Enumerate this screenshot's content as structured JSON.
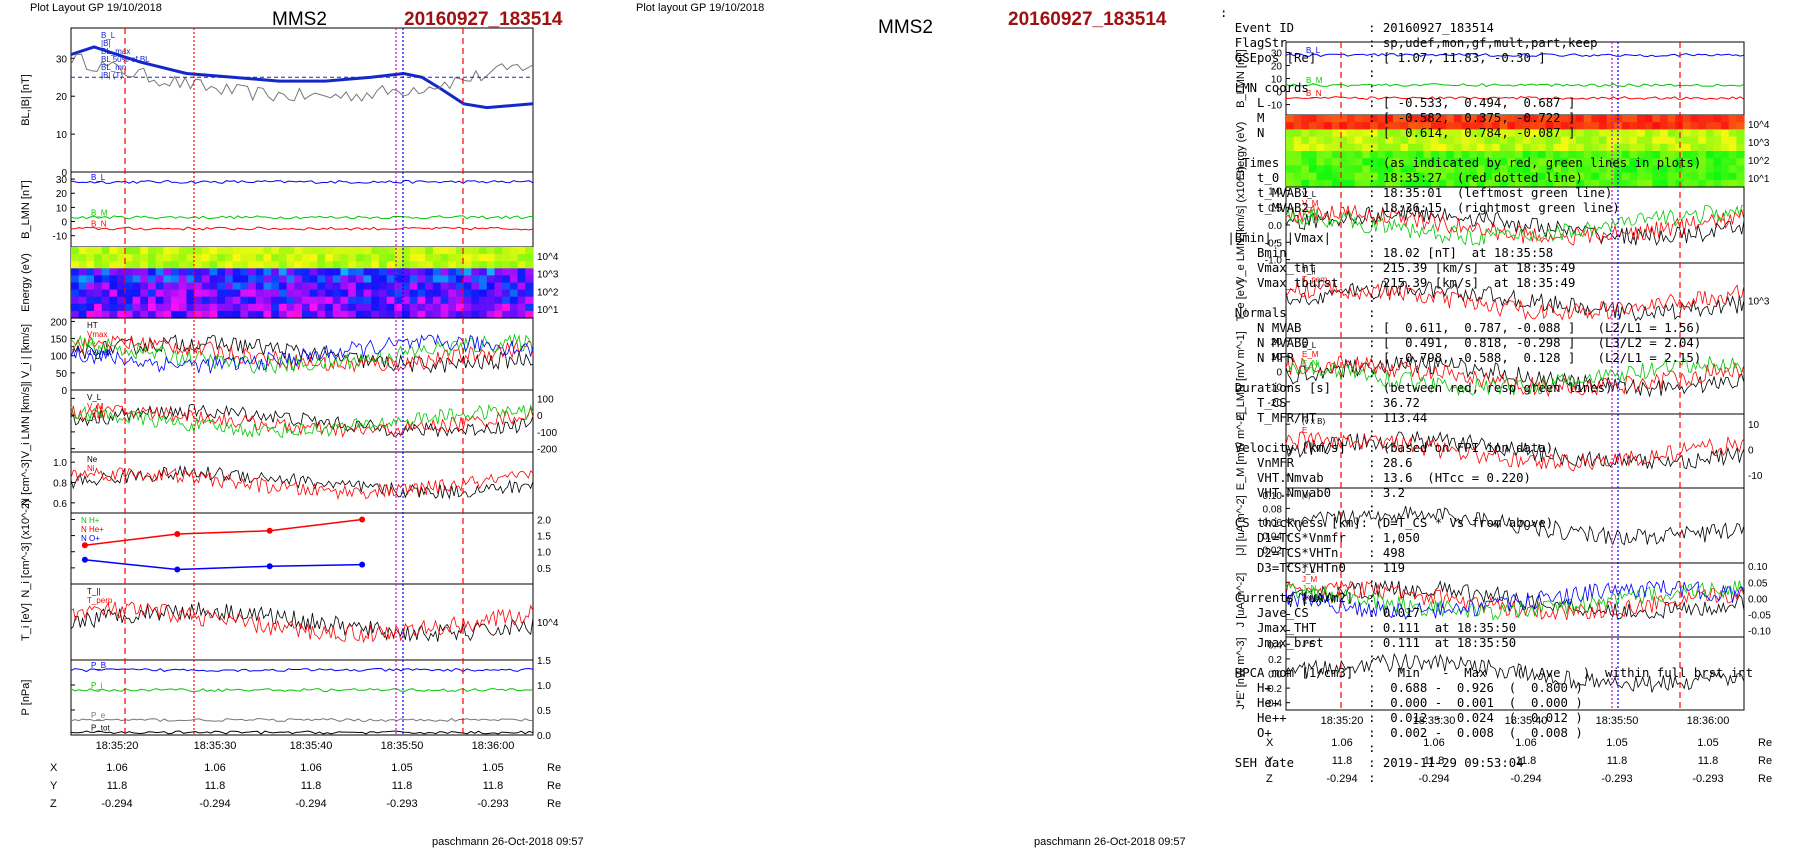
{
  "header": {
    "left_caption": "Plot Layout GP 19/10/2018",
    "right_caption": "Plot layout GP 19/10/2018",
    "spacecraft": "MMS2",
    "event": "20160927_183514"
  },
  "footer": {
    "left": "paschmann 26-Oct-2018 09:57",
    "right": "paschmann 26-Oct-2018 09:57"
  },
  "ephemeris": {
    "labels": [
      "X",
      "Y",
      "Z"
    ],
    "unit": "Re",
    "rows": [
      [
        "1.06",
        "1.06",
        "1.06",
        "1.05",
        "1.05"
      ],
      [
        "11.8",
        "11.8",
        "11.8",
        "11.8",
        "11.8"
      ],
      [
        "-0.294",
        "-0.294",
        "-0.294",
        "-0.293",
        "-0.293"
      ]
    ]
  },
  "summary_lines": [
    ":",
    "  Event ID          : 20160927_183514",
    "  FlagStr           : sp,udef,mon,gf,mult,part,keep",
    "  GSEpos [Re]       : [ 1.07, 11.83, -0.30 ]",
    "                    :",
    "  LMN coords        :",
    "     L              : [ -0.533,  0.494,  0.687 ]",
    "     M              : [ -0.582,  0.375, -0.722 ]",
    "     N              : [  0.614,  0.784, -0.087 ]",
    "                    :",
    "   Times            : (as indicated by red, green lines in plots)",
    "     t_0            : 18:35:27  (red dotted line)",
    "     t_MVAB1        : 18:35:01  (leftmost green line)",
    "     t_MVAB2        : 18:36:15  (rightmost green line)",
    "                    :",
    " |Bmin|, |Vmax|     :",
    "     Bmin           : 18.02 [nT]  at 18:35:58",
    "     Vmax_tht       : 215.39 [km/s]  at 18:35:49",
    "     Vmax_tburst    : 215.39 [km/s]  at 18:35:49",
    "                    :",
    "  Normals           :",
    "     N MVAB         : [  0.611,  0.787, -0.088 ]   (L2/L1 = 1.56)",
    "     N MVAB0        : [  0.491,  0.818, -0.298 ]   (L3/L2 = 2.04)",
    "     N MFR          : [ -0.798, -0.588,  0.128 ]   (L2/L1 = 2.15)",
    "                    :",
    "  Durations [s]     : (between red, resp green lines)",
    "     T_CS           : 36.72",
    "     T_MFR/HT       : 113.44",
    "                    :",
    "  Velocity [km/s]   : (based on FPI ion data)",
    "     VnMFR          : 28.6",
    "     VHT.Nmvab      : 13.6  (HTcc = 0.220)",
    "     VHT.Nmvab0     : 3.2",
    "                    :",
    "  CS thickness [km]: (D=T_CS * Vs from above)",
    "     D1=TCS*Vnmfr   : 1,050",
    "     D2=TCS*VHTn    : 498",
    "     D3=TCS*VHTn0   : 119",
    "                    :",
    "  Currents [uA/m2]  :",
    "     Jave_CS        : 0.017",
    "     Jmax_THT       : 0.111  at 18:35:50",
    "     Jmax_brst      : 0.111  at 18:35:50",
    "                    :",
    "  HPCA mom [1/cm3]  :   Min   -  Max    (  Ave   )  within full brst int",
    "     H+             :  0.688 -  0.926  (  0.800 )",
    "     He+            :  0.000 -  0.001  (  0.000 )",
    "     He++           :  0.012 -  0.024  (  0.012 )",
    "     O+             :  0.002 -  0.008  (  0.008 )",
    "                    :",
    "  SEH date          : 2019-11-29 09:53:04",
    "                    :"
  ],
  "colors": {
    "event_red": "#a01010",
    "bl_thick": "#1428c8",
    "series_blue": "#0000ff",
    "series_red": "#ff0000",
    "series_green": "#00c800",
    "marker_magenta": "#cc00cc"
  },
  "chart_data": [
    {
      "type": "line",
      "title": "MMS2 20160927_183514 (left)",
      "x_ticks": [
        "18:35:20",
        "18:35:30",
        "18:35:40",
        "18:35:50",
        "18:36:00"
      ],
      "panels": [
        {
          "id": "bl",
          "ylabel": "BL,|B| [nT]",
          "ylim": [
            0,
            38
          ],
          "ticks": [
            "0",
            "10",
            "20",
            "30"
          ],
          "legend": [
            "B_L",
            "|B|",
            "BL_max",
            "BL 50% of BL",
            "BL_mn",
            "|B| (T)"
          ],
          "thick_line": [
            [
              0,
              31
            ],
            [
              0.05,
              33
            ],
            [
              0.1,
              31
            ],
            [
              0.15,
              29
            ],
            [
              0.25,
              26
            ],
            [
              0.35,
              25
            ],
            [
              0.45,
              24
            ],
            [
              0.55,
              24
            ],
            [
              0.65,
              25
            ],
            [
              0.72,
              26
            ],
            [
              0.76,
              25
            ],
            [
              0.8,
              22
            ],
            [
              0.85,
              18
            ],
            [
              0.9,
              17
            ],
            [
              1,
              18
            ]
          ],
          "dashed_level": {
            "value": 25
          },
          "zero_level": {
            "value": 0
          }
        },
        {
          "id": "blmn",
          "ylabel": "B_LMN [nT]",
          "ylim": [
            -18,
            35
          ],
          "ticks": [
            "-10",
            "0",
            "10",
            "20",
            "30"
          ],
          "series": [
            {
              "name": "B_L",
              "color": "blue",
              "level": 28
            },
            {
              "name": "B_M",
              "color": "green",
              "level": 3
            },
            {
              "name": "B_N",
              "color": "red",
              "level": -5
            }
          ]
        },
        {
          "id": "ion_spec",
          "ylabel": "Energy (eV)",
          "ticks": [
            "10^1",
            "10^2",
            "10^3",
            "10^4"
          ],
          "kind": "spectrogram"
        },
        {
          "id": "vi_mag",
          "ylabel": "| V_i | [km/s]",
          "ylim": [
            0,
            210
          ],
          "ticks": [
            "0",
            "50",
            "100",
            "150",
            "200"
          ],
          "legend": [
            "HT",
            "Vmax",
            "ce",
            "dVmax"
          ]
        },
        {
          "id": "vi_lmn",
          "ylabel": "V_i LMN [km/s]",
          "ylim": [
            -220,
            150
          ],
          "ticks": [
            "100",
            "0",
            "-100",
            "-200"
          ],
          "legend": [
            "V_L",
            "V_M",
            "V_N"
          ]
        },
        {
          "id": "ni",
          "ylabel": "N [cm^-3]",
          "ylim": [
            0.5,
            1.1
          ],
          "ticks": [
            "0.6",
            "0.8",
            "1.0"
          ],
          "legend": [
            "Ne",
            "Ni"
          ]
        },
        {
          "id": "hpca",
          "ylabel": "N_i [cm^-3] (x10^-2)",
          "ylim": [
            0,
            2.2
          ],
          "ticks": [
            "0.5",
            "1.0",
            "1.5",
            "2.0"
          ],
          "series": [
            {
              "name": "N He+",
              "color": "red",
              "x": [
                0.03,
                0.23,
                0.43,
                0.63
              ],
              "y": [
                1.2,
                1.55,
                1.65,
                2.0
              ]
            },
            {
              "name": "N O+",
              "color": "blue",
              "x": [
                0.03,
                0.23,
                0.43,
                0.63
              ],
              "y": [
                0.75,
                0.45,
                0.55,
                0.6
              ]
            }
          ],
          "legend": [
            "N H+",
            "N He+",
            "N O+"
          ]
        },
        {
          "id": "ti",
          "ylabel": "T_i [eV]",
          "ticks": [
            "10^4"
          ],
          "legend": [
            "T_||",
            "T_perp"
          ]
        },
        {
          "id": "p",
          "ylabel": "P [nPa]",
          "ylim": [
            0,
            1.5
          ],
          "ticks": [
            "0.0",
            "0.5",
            "1.0",
            "1.5"
          ],
          "series": [
            {
              "name": "P_B",
              "color": "blue",
              "level": 1.3
            },
            {
              "name": "P_i",
              "color": "green",
              "level": 0.9
            },
            {
              "name": "P_e",
              "color": "gray",
              "level": 0.3
            },
            {
              "name": "P_tot",
              "color": "black",
              "level": 0.05
            }
          ]
        }
      ]
    },
    {
      "type": "line",
      "title": "MMS2 20160927_183514 (right)",
      "x_ticks": [
        "18:35:20",
        "18:35:30",
        "18:35:40",
        "18:35:50",
        "18:36:00"
      ],
      "panels": [
        {
          "id": "blmn2",
          "ylabel": "B_LMN [nT]",
          "ylim": [
            -18,
            38
          ],
          "ticks": [
            "-10",
            "0",
            "10",
            "20",
            "30"
          ],
          "series": [
            {
              "name": "B_L",
              "color": "blue",
              "level": 28
            },
            {
              "name": "B_M",
              "color": "green",
              "level": 5
            },
            {
              "name": "B_N",
              "color": "red",
              "level": -5
            }
          ]
        },
        {
          "id": "ele_spec",
          "ylabel": "Energy (eV)",
          "ticks": [
            "10^1",
            "10^2",
            "10^3",
            "10^4"
          ],
          "kind": "spectrogram"
        },
        {
          "id": "ve",
          "ylabel": "V_e LMN [km/s] (x10^3)",
          "ylim": [
            -1.1,
            1.1
          ],
          "ticks": [
            "1.0",
            "0.5",
            "0.0",
            "-0.5",
            "-1.0"
          ],
          "legend": [
            "V_L",
            "V_M",
            "V_N"
          ]
        },
        {
          "id": "te",
          "ylabel": "T_e [eV]",
          "ticks": [
            "10^3"
          ],
          "legend": [
            "T_||",
            "T_perp"
          ]
        },
        {
          "id": "e",
          "ylabel": "E_LMN [mV m^-1]",
          "ylim": [
            -28,
            22
          ],
          "ticks": [
            "20",
            "10",
            "0",
            "-10",
            "-20"
          ],
          "legend": [
            "E_L",
            "E_M",
            "E_N"
          ]
        },
        {
          "id": "em",
          "ylabel": "E_M [mW m^-2]",
          "ylim": [
            -15,
            14
          ],
          "ticks": [
            "10",
            "0",
            "-10"
          ],
          "legend": [
            "(v x B)",
            "E"
          ]
        },
        {
          "id": "jmag",
          "ylabel": "|J| [uA m^-2]",
          "ylim": [
            0,
            0.11
          ],
          "ticks": [
            "0.02",
            "0.04",
            "0.06",
            "0.08",
            "0.10"
          ],
          "legend": [
            "|J|"
          ]
        },
        {
          "id": "jlmn",
          "ylabel": "J [uA m^-2]",
          "ylim": [
            -0.12,
            0.11
          ],
          "ticks": [
            "0.10",
            "0.05",
            "0.00",
            "-0.05",
            "-0.10"
          ],
          "legend": [
            "J_L",
            "J_M",
            "J_N",
            "Jmax"
          ]
        },
        {
          "id": "je",
          "ylabel": "J*E' [nW m^-3]",
          "ylim": [
            -0.5,
            0.5
          ],
          "ticks": [
            "0.4",
            "0.2",
            "0.0",
            "-0.2",
            "-0.4"
          ],
          "legend": [
            "J*E'"
          ]
        }
      ]
    }
  ]
}
